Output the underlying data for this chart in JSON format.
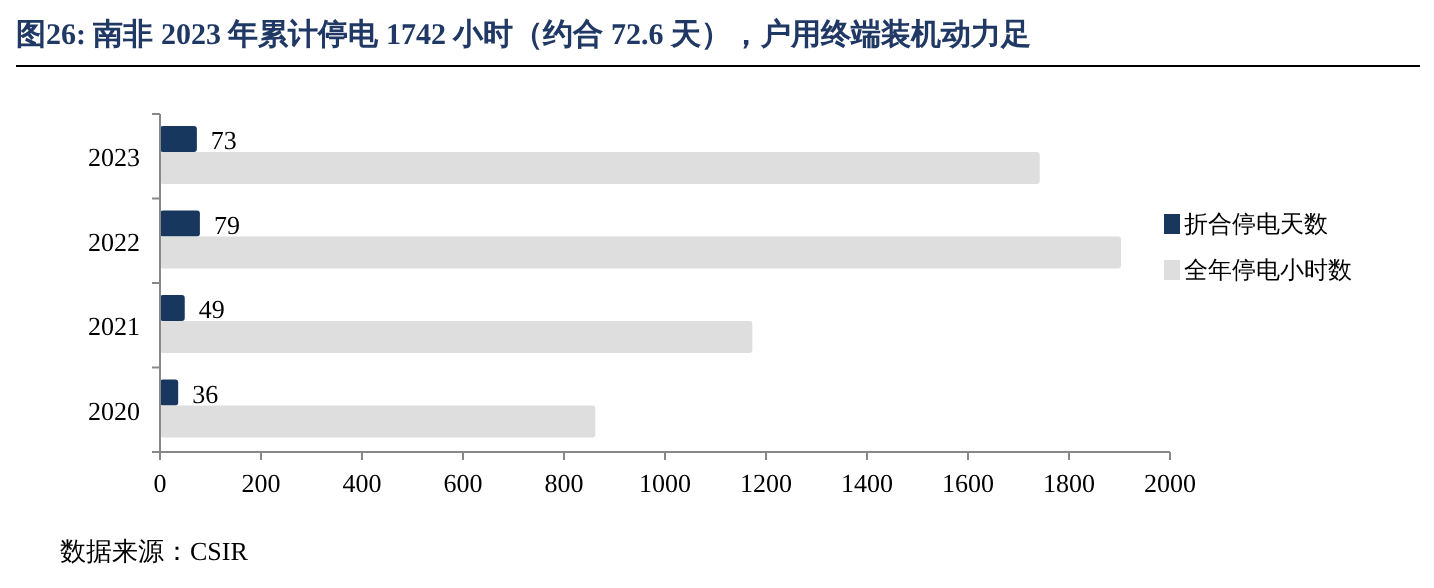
{
  "chart_data": {
    "type": "bar",
    "orientation": "horizontal",
    "title": "图26:  南非 2023 年累计停电 1742 小时（约合 72.6 天），户用终端装机动力足",
    "categories": [
      "2023",
      "2022",
      "2021",
      "2020"
    ],
    "series": [
      {
        "name": "折合停电天数",
        "color": "#17375e",
        "values": [
          73,
          79,
          49,
          36
        ],
        "value_labels": [
          "73",
          "79",
          "49",
          "36"
        ]
      },
      {
        "name": "全年停电小时数",
        "color": "#dedede",
        "values": [
          1742,
          1903,
          1173,
          862
        ]
      }
    ],
    "xlim": [
      0,
      2000
    ],
    "xticks": [
      0,
      200,
      400,
      600,
      800,
      1000,
      1200,
      1400,
      1600,
      1800,
      2000
    ],
    "legend": "right",
    "grid": false,
    "annotations": [
      "数据来源：CSIR"
    ]
  }
}
